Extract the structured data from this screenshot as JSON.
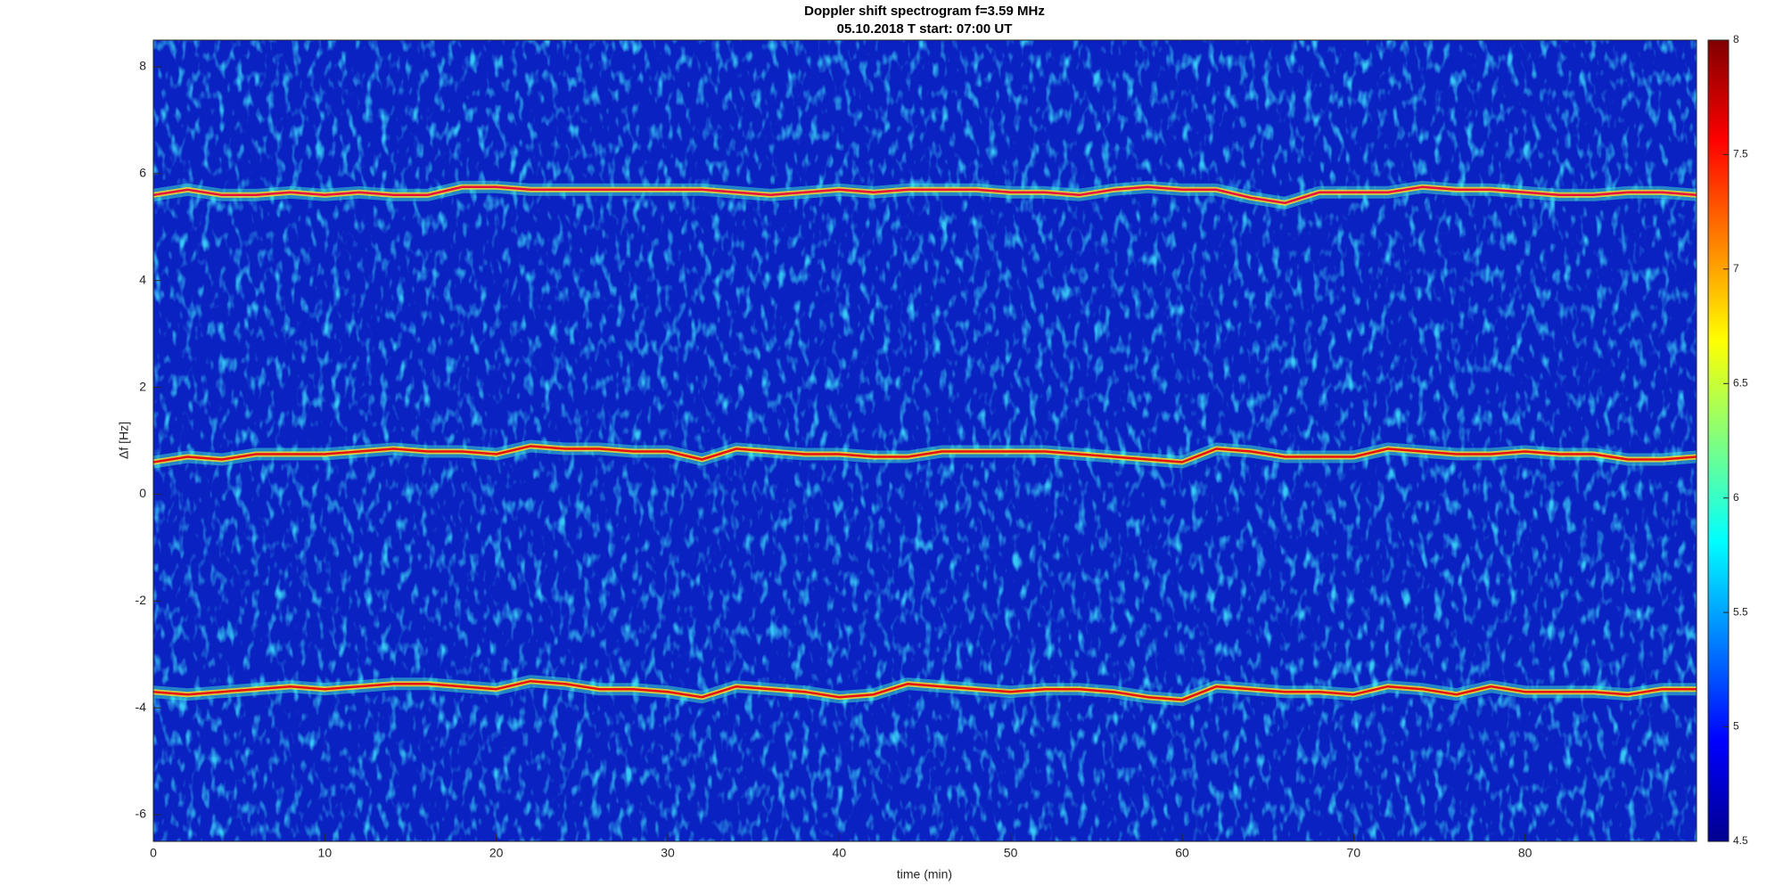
{
  "chart_data": {
    "type": "spectrogram",
    "title": "Doppler shift spectrogram f=3.59 MHz",
    "subtitle": "05.10.2018   T start: 07:00 UT",
    "xlabel": "time (min)",
    "ylabel": "Δf [Hz]",
    "xlim": [
      0,
      90
    ],
    "xticks": [
      0,
      10,
      20,
      30,
      40,
      50,
      60,
      70,
      80
    ],
    "ylim": [
      -6.5,
      8.5
    ],
    "yticks": [
      -6,
      -4,
      -2,
      0,
      2,
      4,
      6,
      8
    ],
    "clim": [
      4.5,
      8
    ],
    "cticks": [
      4.5,
      5,
      5.5,
      6,
      6.5,
      7,
      7.5,
      8
    ],
    "x": [
      0,
      2,
      4,
      6,
      8,
      10,
      12,
      14,
      16,
      18,
      20,
      22,
      24,
      26,
      28,
      30,
      32,
      34,
      36,
      38,
      40,
      42,
      44,
      46,
      48,
      50,
      52,
      54,
      56,
      58,
      60,
      62,
      64,
      66,
      68,
      70,
      72,
      74,
      76,
      78,
      80,
      82,
      84,
      86,
      88,
      90
    ],
    "series": [
      {
        "color": "#e8103a",
        "values": [
          5.6,
          5.7,
          5.6,
          5.6,
          5.65,
          5.6,
          5.65,
          5.6,
          5.6,
          5.75,
          5.75,
          5.7,
          5.7,
          5.7,
          5.7,
          5.7,
          5.7,
          5.65,
          5.6,
          5.65,
          5.7,
          5.65,
          5.7,
          5.7,
          5.7,
          5.65,
          5.65,
          5.6,
          5.7,
          5.75,
          5.7,
          5.7,
          5.55,
          5.45,
          5.65,
          5.65,
          5.65,
          5.75,
          5.7,
          5.7,
          5.65,
          5.6,
          5.6,
          5.65,
          5.65,
          5.6
        ]
      },
      {
        "color": "#e81010",
        "values": [
          0.6,
          0.7,
          0.65,
          0.75,
          0.75,
          0.75,
          0.8,
          0.85,
          0.8,
          0.8,
          0.75,
          0.9,
          0.85,
          0.85,
          0.8,
          0.8,
          0.65,
          0.85,
          0.8,
          0.75,
          0.75,
          0.7,
          0.7,
          0.8,
          0.8,
          0.8,
          0.8,
          0.75,
          0.7,
          0.65,
          0.6,
          0.85,
          0.8,
          0.7,
          0.7,
          0.7,
          0.85,
          0.8,
          0.75,
          0.75,
          0.8,
          0.75,
          0.75,
          0.65,
          0.65,
          0.7
        ]
      },
      {
        "color": "#e81010",
        "values": [
          -3.7,
          -3.75,
          -3.7,
          -3.65,
          -3.6,
          -3.65,
          -3.6,
          -3.55,
          -3.55,
          -3.6,
          -3.65,
          -3.5,
          -3.55,
          -3.65,
          -3.65,
          -3.7,
          -3.8,
          -3.6,
          -3.65,
          -3.7,
          -3.8,
          -3.75,
          -3.55,
          -3.6,
          -3.65,
          -3.7,
          -3.65,
          -3.65,
          -3.7,
          -3.8,
          -3.85,
          -3.6,
          -3.65,
          -3.7,
          -3.7,
          -3.75,
          -3.6,
          -3.65,
          -3.75,
          -3.6,
          -3.7,
          -3.7,
          -3.7,
          -3.75,
          -3.65,
          -3.65
        ]
      }
    ]
  }
}
